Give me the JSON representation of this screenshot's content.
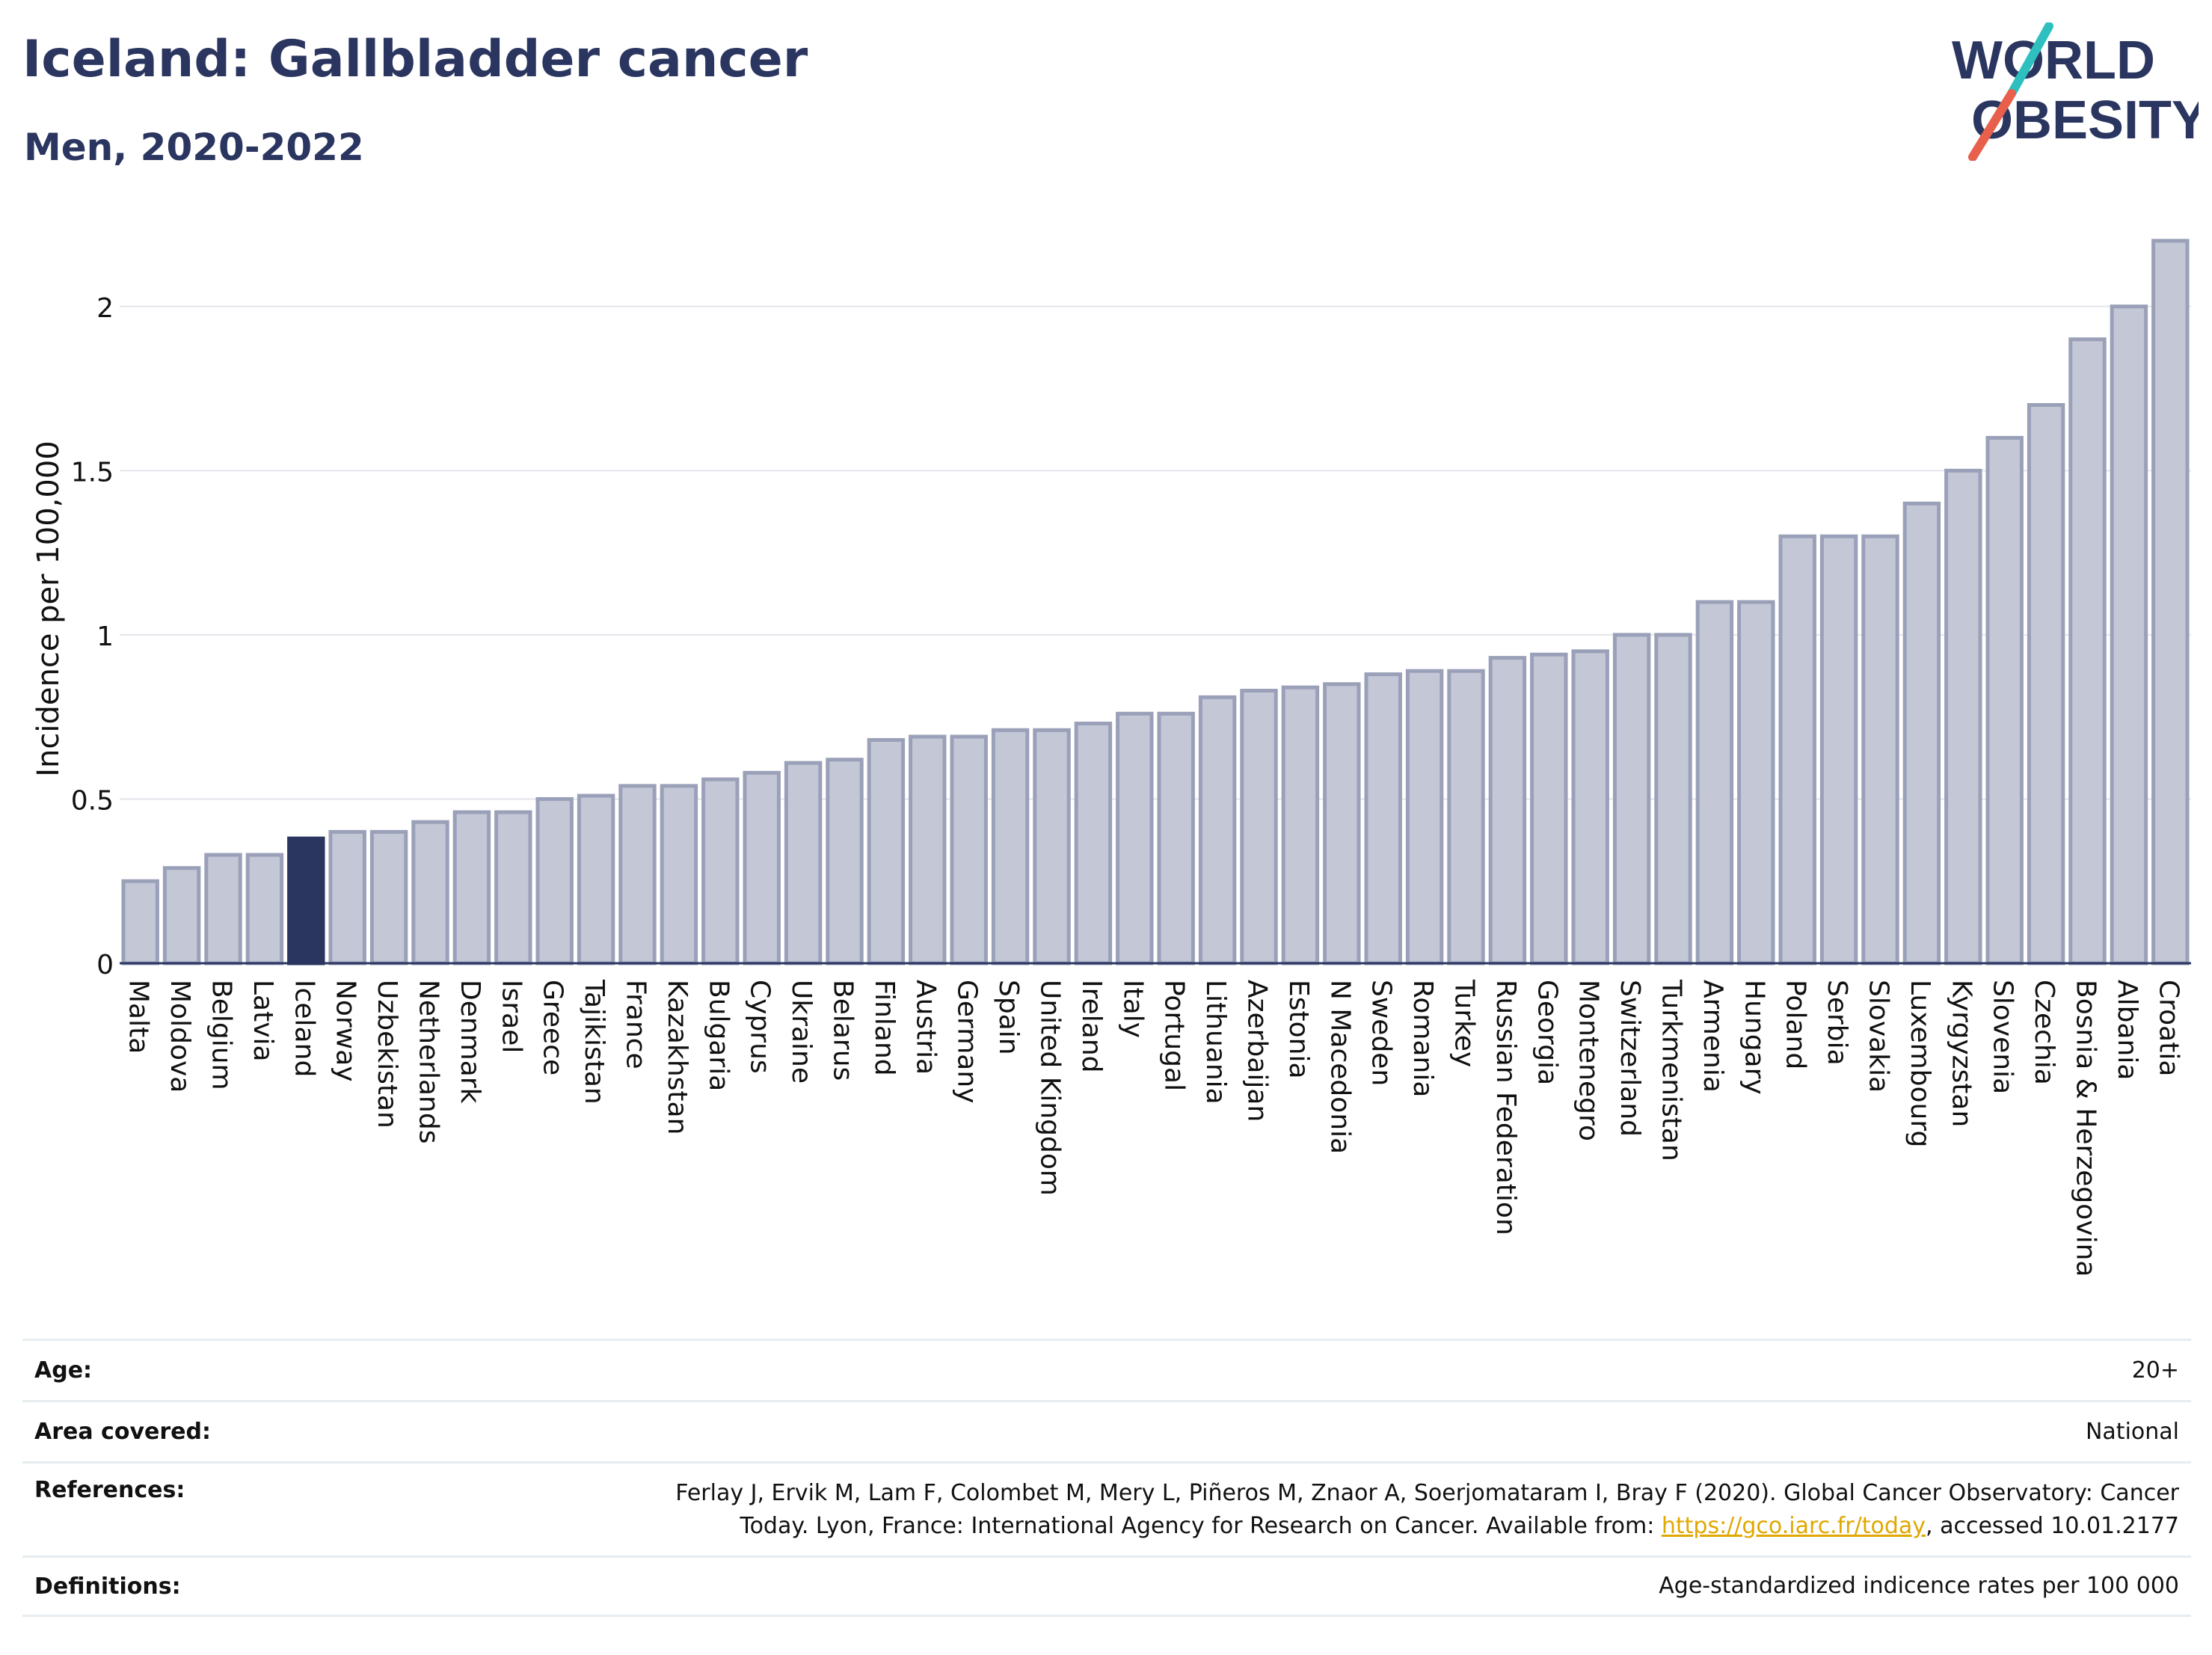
{
  "header": {
    "title": "Iceland: Gallbladder cancer",
    "subtitle": "Men, 2020-2022"
  },
  "logo": {
    "line1": "WORLD",
    "line2": "OBESITY",
    "colors": {
      "text": "#2b3660",
      "slash_teal": "#2ebfbf",
      "slash_red": "#e8604c"
    }
  },
  "chart_data": {
    "type": "bar",
    "ylabel": "Incidence per 100,000",
    "xlabel": "",
    "ylim": [
      0,
      2.25
    ],
    "yticks": [
      0,
      0.5,
      1,
      1.5,
      2
    ],
    "ytick_labels": [
      "0",
      "0.5",
      "1",
      "1.5",
      "2"
    ],
    "grid": true,
    "highlight": "Iceland",
    "colors": {
      "bar": "#c3c7d6",
      "bar_border": "#9aa0b8",
      "highlight": "#2b3660"
    },
    "categories": [
      "Malta",
      "Moldova",
      "Belgium",
      "Latvia",
      "Iceland",
      "Norway",
      "Uzbekistan",
      "Netherlands",
      "Denmark",
      "Israel",
      "Greece",
      "Tajikistan",
      "France",
      "Kazakhstan",
      "Bulgaria",
      "Cyprus",
      "Ukraine",
      "Belarus",
      "Finland",
      "Austria",
      "Germany",
      "Spain",
      "United Kingdom",
      "Ireland",
      "Italy",
      "Portugal",
      "Lithuania",
      "Azerbaijan",
      "Estonia",
      "N Macedonia",
      "Sweden",
      "Romania",
      "Turkey",
      "Russian Federation",
      "Georgia",
      "Montenegro",
      "Switzerland",
      "Turkmenistan",
      "Armenia",
      "Hungary",
      "Poland",
      "Serbia",
      "Slovakia",
      "Luxembourg",
      "Kyrgyzstan",
      "Slovenia",
      "Czechia",
      "Bosnia & Herzegovina",
      "Albania",
      "Croatia"
    ],
    "values": [
      0.25,
      0.29,
      0.33,
      0.33,
      0.38,
      0.4,
      0.4,
      0.43,
      0.46,
      0.46,
      0.5,
      0.51,
      0.54,
      0.54,
      0.56,
      0.58,
      0.61,
      0.62,
      0.68,
      0.69,
      0.69,
      0.71,
      0.71,
      0.73,
      0.76,
      0.76,
      0.81,
      0.83,
      0.84,
      0.85,
      0.88,
      0.89,
      0.89,
      0.93,
      0.94,
      0.95,
      1.0,
      1.0,
      1.1,
      1.1,
      1.3,
      1.3,
      1.3,
      1.4,
      1.5,
      1.6,
      1.7,
      1.9,
      2.0,
      2.2
    ]
  },
  "meta": {
    "age_label": "Age:",
    "age_value": "20+",
    "area_label": "Area covered:",
    "area_value": "National",
    "references_label": "References:",
    "references_line1": "Ferlay J, Ervik M, Lam F, Colombet M, Mery L, Piñeros M, Znaor A, Soerjomataram I, Bray F (2020). Global Cancer Observatory: Cancer",
    "references_line2_pre": "Today. Lyon, France: International Agency for Research on Cancer. Available from: ",
    "references_link": "https://gco.iarc.fr/today",
    "references_line2_post": ", accessed 10.01.2177",
    "definitions_label": "Definitions:",
    "definitions_value": "Age-standardized indicence rates per 100 000"
  }
}
